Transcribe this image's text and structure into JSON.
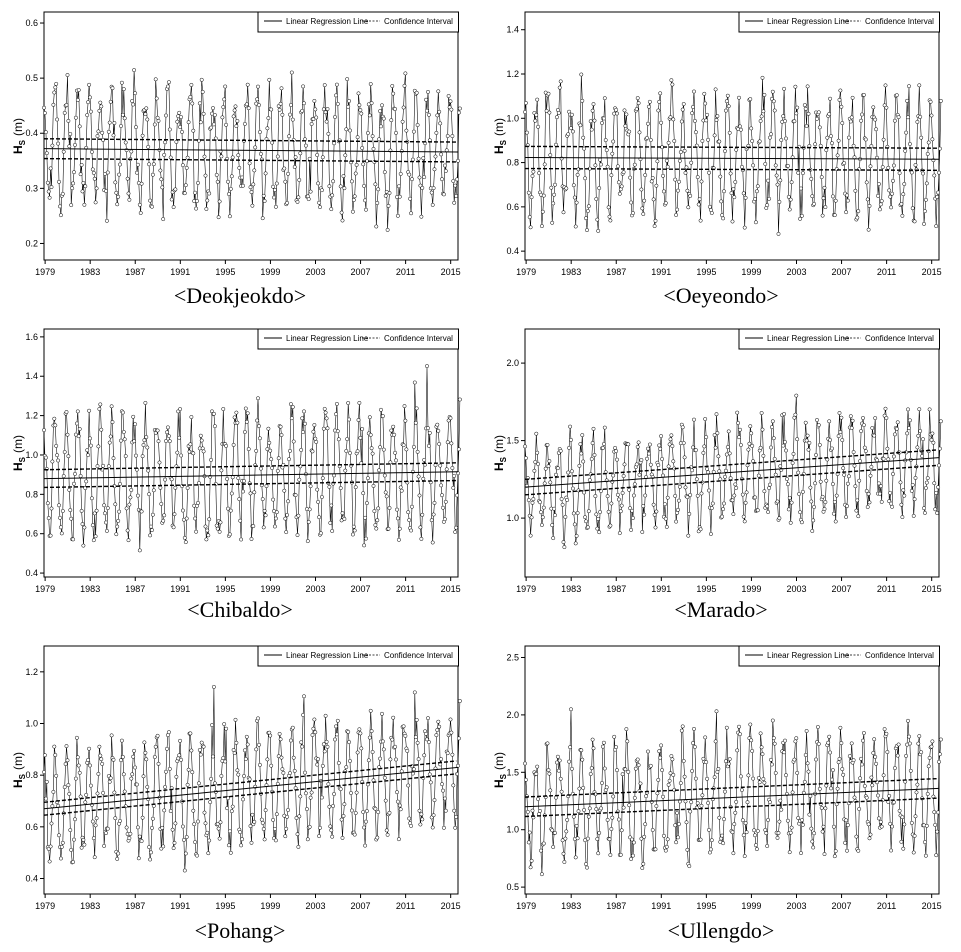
{
  "legend": {
    "regression": "Linear Regression Line",
    "ci": "Confidence Interval"
  },
  "x_ticks": [
    "1979",
    "1983",
    "1987",
    "1991",
    "1995",
    "1999",
    "2003",
    "2007",
    "2011",
    "2015"
  ],
  "ylabel": {
    "main": "H",
    "sub": "S",
    "unit": "(m)"
  },
  "chart_data": [
    {
      "type": "line",
      "caption": "<Deokjeokdo>",
      "x_range": [
        1979,
        2015
      ],
      "ylim": [
        0.17,
        0.62
      ],
      "y_ticks": [
        "0.2",
        "0.3",
        "0.4",
        "0.5",
        "0.6"
      ],
      "base": 0.37,
      "amp": 0.13,
      "regression": [
        0.372,
        0.366
      ],
      "ci": [
        0.018,
        0.018
      ],
      "seed": 11
    },
    {
      "type": "line",
      "caption": "<Oeyeondo>",
      "x_range": [
        1979,
        2015
      ],
      "ylim": [
        0.36,
        1.48
      ],
      "y_ticks": [
        "0.4",
        "0.6",
        "0.8",
        "1.0",
        "1.2",
        "1.4"
      ],
      "base": 0.83,
      "amp": 0.33,
      "regression": [
        0.823,
        0.815
      ],
      "ci": [
        0.05,
        0.05
      ],
      "seed": 23
    },
    {
      "type": "line",
      "caption": "<Chibaldo>",
      "x_range": [
        1979,
        2015
      ],
      "ylim": [
        0.38,
        1.64
      ],
      "y_ticks": [
        "0.4",
        "0.6",
        "0.8",
        "1.0",
        "1.2",
        "1.4",
        "1.6"
      ],
      "base": 0.9,
      "amp": 0.37,
      "regression": [
        0.88,
        0.915
      ],
      "ci": [
        0.045,
        0.045
      ],
      "seed": 37
    },
    {
      "type": "line",
      "caption": "<Marado>",
      "x_range": [
        1979,
        2015
      ],
      "ylim": [
        0.62,
        2.22
      ],
      "y_ticks": [
        "1.0",
        "1.5",
        "2.0"
      ],
      "base": 1.28,
      "amp": 0.37,
      "regression": [
        1.2,
        1.39
      ],
      "ci": [
        0.05,
        0.05
      ],
      "seed": 41
    },
    {
      "type": "line",
      "caption": "<Pohang>",
      "x_range": [
        1979,
        2015
      ],
      "ylim": [
        0.34,
        1.3
      ],
      "y_ticks": [
        "0.4",
        "0.6",
        "0.8",
        "1.0",
        "1.2"
      ],
      "base": 0.75,
      "amp": 0.27,
      "regression": [
        0.67,
        0.83
      ],
      "ci": [
        0.025,
        0.025
      ],
      "seed": 53
    },
    {
      "type": "line",
      "caption": "<Ullengdo>",
      "x_range": [
        1979,
        2015
      ],
      "ylim": [
        0.44,
        2.6
      ],
      "y_ticks": [
        "0.5",
        "1.0",
        "1.5",
        "2.0",
        "2.5"
      ],
      "base": 1.3,
      "amp": 0.6,
      "regression": [
        1.2,
        1.36
      ],
      "ci": [
        0.085,
        0.085
      ],
      "seed": 67
    }
  ]
}
